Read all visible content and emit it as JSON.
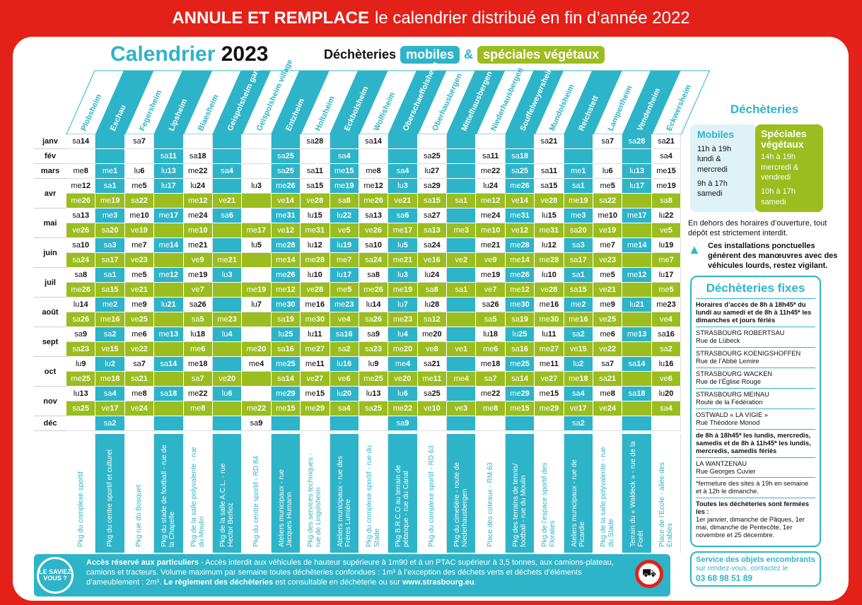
{
  "banner": {
    "strong": "ANNULE ET REMPLACE",
    "rest": "le calendrier distribué en fin d’année 2022"
  },
  "title": {
    "word": "Calendrier",
    "year": "2023"
  },
  "subtitle": {
    "prefix": "Déchèteries",
    "mobiles": "mobiles",
    "amp": "&",
    "vegetaux": "spéciales végétaux"
  },
  "colors": {
    "blue": "#2eb4c8",
    "green": "#9bbd1f",
    "red": "#e32119"
  },
  "communes": [
    "Plobsheim",
    "Eschau",
    "Fegersheim",
    "Lipsheim",
    "Blaesheim",
    "Geispolsheim gare",
    "Geispolsheim village",
    "Entzheim",
    "Holtzheim",
    "Eckbolsheim",
    "Wolfisheim",
    "Oberschaeffolsheim",
    "Oberhausbergen",
    "Mittelhausbergen",
    "Niederhausbergen",
    "Souffelweyersheim",
    "Mundolsheim",
    "Reichstett",
    "Lampertheim",
    "Vendenheim",
    "Eckwersheim"
  ],
  "colTypes": [
    "w",
    "b",
    "w",
    "b",
    "w",
    "b",
    "w",
    "b",
    "w",
    "b",
    "w",
    "b",
    "w",
    "b",
    "w",
    "b",
    "w",
    "b",
    "w",
    "b",
    "w"
  ],
  "months": [
    {
      "label": "janv",
      "rows": [
        [
          "sa14",
          "",
          "sa7",
          "",
          "",
          "",
          "",
          "",
          "sa28",
          "",
          "sa14",
          "",
          "",
          "",
          "",
          "",
          "sa21",
          "",
          "sa7",
          "sa28",
          "sa21"
        ]
      ]
    },
    {
      "label": "fév",
      "rows": [
        [
          "",
          "",
          "",
          "sa11",
          "sa18",
          "",
          "",
          "sa25",
          "",
          "sa4",
          "",
          "",
          "sa25",
          "",
          "sa11",
          "sa18",
          "",
          "",
          "",
          "",
          "sa4"
        ]
      ]
    },
    {
      "label": "mars",
      "rows": [
        [
          "me8",
          "me1",
          "lu6",
          "lu13",
          "me22",
          "sa4",
          "",
          "sa25",
          "sa11",
          "me15",
          "me8",
          "sa4",
          "lu27",
          "",
          "me22",
          "sa25",
          "sa11",
          "me1",
          "lu6",
          "lu13",
          "me15"
        ]
      ]
    },
    {
      "label": "avr",
      "rows": [
        [
          "me12",
          "sa1",
          "me5",
          "lu17",
          "lu24",
          "",
          "lu3",
          "me26",
          "sa15",
          "me19",
          "me12",
          "lu3",
          "sa29",
          "",
          "lu24",
          "me26",
          "sa15",
          "sa1",
          "me5",
          "lu17",
          "me19"
        ],
        [
          "me26",
          "me19",
          "sa22",
          "",
          "me12",
          "ve21",
          "",
          "ve14",
          "ve28",
          "sa8",
          "me26",
          "ve21",
          "sa15",
          "sa1",
          "me12",
          "ve14",
          "ve28",
          "me19",
          "sa22",
          "",
          "sa8"
        ]
      ]
    },
    {
      "label": "mai",
      "rows": [
        [
          "sa13",
          "me3",
          "me10",
          "me17",
          "me24",
          "sa6",
          "",
          "me31",
          "lu15",
          "lu22",
          "sa13",
          "sa6",
          "sa27",
          "",
          "me24",
          "me31",
          "lu15",
          "me3",
          "me10",
          "me17",
          "lu22"
        ],
        [
          "ve26",
          "sa20",
          "ve19",
          "",
          "me10",
          "",
          "me17",
          "ve12",
          "me31",
          "ve5",
          "ve26",
          "me17",
          "sa13",
          "me3",
          "me10",
          "ve12",
          "me31",
          "sa20",
          "ve19",
          "",
          "ve5"
        ]
      ]
    },
    {
      "label": "juin",
      "rows": [
        [
          "sa10",
          "sa3",
          "me7",
          "me14",
          "me21",
          "",
          "lu5",
          "me28",
          "lu12",
          "lu19",
          "sa10",
          "lu5",
          "sa24",
          "",
          "me21",
          "me28",
          "lu12",
          "sa3",
          "me7",
          "me14",
          "lu19"
        ],
        [
          "sa24",
          "sa17",
          "ve23",
          "",
          "ve9",
          "me21",
          "",
          "me14",
          "me28",
          "me7",
          "sa24",
          "me21",
          "ve16",
          "ve2",
          "ve9",
          "me14",
          "me28",
          "sa17",
          "ve23",
          "",
          "me7"
        ]
      ]
    },
    {
      "label": "juil",
      "rows": [
        [
          "sa8",
          "sa1",
          "me5",
          "me12",
          "me19",
          "lu3",
          "",
          "me26",
          "lu10",
          "lu17",
          "sa8",
          "lu3",
          "lu24",
          "",
          "me19",
          "me26",
          "lu10",
          "sa1",
          "me5",
          "me12",
          "lu17"
        ],
        [
          "me26",
          "sa15",
          "ve21",
          "",
          "ve7",
          "",
          "me19",
          "me12",
          "ve28",
          "me5",
          "me26",
          "me19",
          "sa8",
          "sa1",
          "ve7",
          "me12",
          "ve28",
          "sa15",
          "ve21",
          "",
          "me5"
        ]
      ]
    },
    {
      "label": "août",
      "rows": [
        [
          "lu14",
          "me2",
          "me9",
          "lu21",
          "sa26",
          "",
          "lu7",
          "me30",
          "me16",
          "me23",
          "lu14",
          "lu7",
          "lu28",
          "",
          "sa26",
          "me30",
          "me16",
          "me2",
          "me9",
          "lu21",
          "me23"
        ],
        [
          "sa26",
          "me16",
          "ve25",
          "",
          "sa5",
          "me23",
          "",
          "sa19",
          "me30",
          "ve4",
          "sa26",
          "me23",
          "sa12",
          "",
          "sa5",
          "sa19",
          "me30",
          "me16",
          "ve25",
          "",
          "ve4"
        ]
      ]
    },
    {
      "label": "sept",
      "rows": [
        [
          "sa9",
          "sa2",
          "me6",
          "me13",
          "lu18",
          "lu4",
          "",
          "lu25",
          "lu11",
          "sa16",
          "sa9",
          "lu4",
          "me20",
          "",
          "lu18",
          "lu25",
          "lu11",
          "sa2",
          "me6",
          "me13",
          "sa16"
        ],
        [
          "sa23",
          "ve15",
          "ve22",
          "",
          "me6",
          "",
          "me20",
          "sa16",
          "me27",
          "sa2",
          "sa23",
          "me20",
          "ve8",
          "ve1",
          "me6",
          "sa16",
          "me27",
          "ve15",
          "ve22",
          "",
          "sa2"
        ]
      ]
    },
    {
      "label": "oct",
      "rows": [
        [
          "lu9",
          "lu2",
          "sa7",
          "sa14",
          "me18",
          "",
          "me4",
          "me25",
          "me11",
          "lu16",
          "lu9",
          "me4",
          "sa21",
          "",
          "me18",
          "me25",
          "me11",
          "lu2",
          "sa7",
          "sa14",
          "lu16"
        ],
        [
          "me25",
          "me18",
          "sa21",
          "",
          "sa7",
          "ve20",
          "",
          "sa14",
          "ve27",
          "ve6",
          "me25",
          "ve20",
          "me11",
          "me4",
          "sa7",
          "sa14",
          "ve27",
          "me18",
          "sa21",
          "",
          "ve6"
        ]
      ]
    },
    {
      "label": "nov",
      "rows": [
        [
          "lu13",
          "sa4",
          "me8",
          "sa18",
          "me22",
          "lu6",
          "",
          "me29",
          "me15",
          "lu20",
          "lu13",
          "lu6",
          "sa25",
          "",
          "me22",
          "me29",
          "me15",
          "sa4",
          "me8",
          "sa18",
          "lu20"
        ],
        [
          "sa25",
          "ve17",
          "ve24",
          "",
          "me8",
          "",
          "me22",
          "me15",
          "me29",
          "sa4",
          "sa25",
          "me22",
          "ve10",
          "ve3",
          "me8",
          "me15",
          "me29",
          "ve17",
          "ve24",
          "",
          "sa4"
        ]
      ]
    },
    {
      "label": "déc",
      "rows": [
        [
          "",
          "sa2",
          "",
          "",
          "",
          "",
          "sa9",
          "",
          "",
          "",
          "",
          "sa9",
          "",
          "",
          "",
          "",
          "",
          "sa2",
          "",
          "",
          ""
        ]
      ]
    }
  ],
  "locations": [
    "Pkg du complexe sportif",
    "Pkg du centre sportif et culturel",
    "Pkg rue du Bosquet",
    "Pkg du stade de football - rue de la Chapelle",
    "Pkg de la salle polyvalente - rue du Moulin",
    "Pkg de la salle A.C.L. - rue Hector Berlioz",
    "Pkg du centre sportif - RD 84",
    "Ateliers municipaux - rue Jacques Humann",
    "Pkg des services techniques - rue de Lingolsheim",
    "Ateliers municipaux - rue des Frères Lumière",
    "Pkg du complexe sportif - rue du Stade",
    "Pkg B.R.C.O au terrain de pétanque - rue du Canal",
    "Pkg du complexe sportif - RD 63",
    "Pkg du cimetière - route de Niederhausbergen",
    "Place des coteaux - RM 63",
    "Pkg des terrains de tennis/ football - rue du Moulin",
    "Pkg de l’espace sportif des Floralies",
    "Ateliers municipaux - rue de Picardie",
    "Pkg de la salle polyvalente - rue du Stade",
    "Terrain du « Waldeck » - rue de la Forêt",
    "Place de l’École - allée des Érables"
  ],
  "notice": {
    "saviez": "LE SAVIEZ VOUS ?",
    "lead": "Accès réservé aux particuliers",
    "text": " - Accès interdit aux véhicules de hauteur supérieure à 1m90 et à un PTAC supérieur à 3,5 tonnes, aux camions-plateau, camions et tracteurs. Volume maximum par semaine toutes déchèteries confondues : 1m³ à l’exception des déchets verts et déchets d’éléments d’ameublement : 2m³.",
    "rule": " Le règlement des déchèteries",
    "tail": " est consultable en déchèterie ou sur ",
    "url": "www.strasbourg.eu",
    "end": "."
  },
  "side": {
    "title": "Déchèteries",
    "mobiles": {
      "title": "Mobiles",
      "h1": "11h à 19h",
      "d1": "lundi & mercredi",
      "h2": "9h à 17h",
      "d2": "samedi"
    },
    "vegetaux": {
      "title": "Spéciales végétaux",
      "h1": "14h à 19h",
      "d1": "mercredi & vendredi",
      "h2": "10h à 17h",
      "d2": "samedi"
    },
    "hors": "En dehors des horaires d’ouverture, tout dépôt est strictement interdit.",
    "warn": "Ces installations ponctuelles génèrent des manœuvres avec des véhicules lourds, restez vigilant.",
    "fixes": {
      "title": "Déchèteries fixes",
      "horaires": "Horaires d’accès de 8h à 18h45* du lundi au samedi et de 8h à 11h45* les dimanches et jours fériés",
      "sites": [
        {
          "n": "STRASBOURG ROBERTSAU",
          "a": "Rue de Lübeck"
        },
        {
          "n": "STRASBOURG KOENIGSHOFFEN",
          "a": "Rue de l’Abbé Lemire"
        },
        {
          "n": "STRASBOURG WACKEN",
          "a": "Rue de l’Église Rouge"
        },
        {
          "n": "STRASBOURG MEINAU",
          "a": "Route de la Fédération"
        },
        {
          "n": "OSTWALD « LA VIGIE »",
          "a": "Rue Théodore Monod"
        }
      ],
      "horaires2": "de 8h à 18h45* les lundis, mercredis, samedis et de 8h à 11h45* les lundis, mercredis, samedis fériés",
      "site2": {
        "n": "LA WANTZENAU",
        "a": "Rue Georges Cuvier"
      },
      "note": "*fermeture des sites à 19h en semaine et à 12h le dimanche.",
      "closed": "Toutes les déchèteries sont fermées les :",
      "closedDays": "1er janvier, dimanche de Pâques, 1er mai, dimanche de Pentecôte, 1er novembre et 25 décembre."
    },
    "objets": {
      "title": "Service des objets encombrants",
      "text": "sur rendez-vous, contactez le",
      "tel": "03 68 98 51 89"
    }
  }
}
